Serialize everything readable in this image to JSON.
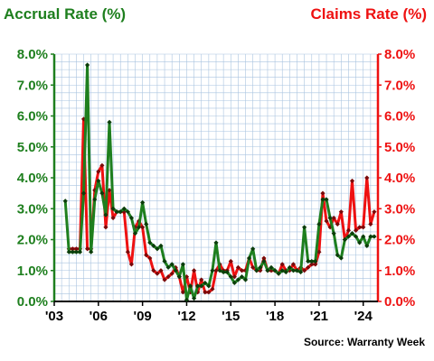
{
  "chart_data": {
    "type": "line",
    "title_left": "Accrual Rate (%)",
    "title_right": "Claims Rate (%)",
    "source": "Source: Warranty Week",
    "colors": {
      "accrual": "#1e7f1e",
      "claims": "#ee1111",
      "grid": "#aac4e0"
    },
    "x_range": [
      2003.0,
      2025.0
    ],
    "y_range": [
      0,
      8
    ],
    "left_ticks": [
      "0.0%",
      "1.0%",
      "2.0%",
      "3.0%",
      "4.0%",
      "5.0%",
      "6.0%",
      "7.0%",
      "8.0%"
    ],
    "right_ticks": [
      "0.0%",
      "1.0%",
      "2.0%",
      "3.0%",
      "4.0%",
      "5.0%",
      "6.0%",
      "7.0%",
      "8.0%"
    ],
    "x_ticks": [
      {
        "label": "'03",
        "x": 2003
      },
      {
        "label": "'06",
        "x": 2006
      },
      {
        "label": "'09",
        "x": 2009
      },
      {
        "label": "'12",
        "x": 2012
      },
      {
        "label": "'15",
        "x": 2015
      },
      {
        "label": "'18",
        "x": 2018
      },
      {
        "label": "'21",
        "x": 2021
      },
      {
        "label": "'24",
        "x": 2024
      }
    ],
    "series": [
      {
        "name": "Accrual Rate (%)",
        "color": "#1e7f1e",
        "x": [
          2003.75,
          2004.0,
          2004.25,
          2004.5,
          2004.75,
          2005.0,
          2005.25,
          2005.5,
          2005.75,
          2006.0,
          2006.25,
          2006.5,
          2006.75,
          2007.0,
          2007.25,
          2007.5,
          2007.75,
          2008.0,
          2008.25,
          2008.5,
          2008.75,
          2009.0,
          2009.25,
          2009.5,
          2009.75,
          2010.0,
          2010.25,
          2010.5,
          2010.75,
          2011.0,
          2011.25,
          2011.5,
          2011.75,
          2012.0,
          2012.25,
          2012.5,
          2012.75,
          2013.0,
          2013.25,
          2013.5,
          2013.75,
          2014.0,
          2014.25,
          2014.5,
          2014.75,
          2015.0,
          2015.25,
          2015.5,
          2015.75,
          2016.0,
          2016.25,
          2016.5,
          2016.75,
          2017.0,
          2017.25,
          2017.5,
          2017.75,
          2018.0,
          2018.25,
          2018.5,
          2018.75,
          2019.0,
          2019.25,
          2019.5,
          2019.75,
          2020.0,
          2020.25,
          2020.5,
          2020.75,
          2021.0,
          2021.25,
          2021.5,
          2021.75,
          2022.0,
          2022.25,
          2022.5,
          2022.75,
          2023.0,
          2023.25,
          2023.5,
          2023.75,
          2024.0,
          2024.25,
          2024.5,
          2024.75
        ],
        "values": [
          3.25,
          1.6,
          1.6,
          1.6,
          1.6,
          3.5,
          7.65,
          1.6,
          3.3,
          3.9,
          3.5,
          2.8,
          5.8,
          3.0,
          2.9,
          2.9,
          3.0,
          2.9,
          2.7,
          2.2,
          2.4,
          3.2,
          2.5,
          1.9,
          1.8,
          1.7,
          1.8,
          1.3,
          1.1,
          1.2,
          1.0,
          0.8,
          1.2,
          0.05,
          0.5,
          0.1,
          0.5,
          0.5,
          0.6,
          0.5,
          1.0,
          1.9,
          1.0,
          0.95,
          0.95,
          0.8,
          0.6,
          0.7,
          0.8,
          0.7,
          1.4,
          1.7,
          1.0,
          1.1,
          1.3,
          1.0,
          1.1,
          1.0,
          0.9,
          1.0,
          0.95,
          1.1,
          1.0,
          1.0,
          0.95,
          2.4,
          1.3,
          1.3,
          1.3,
          2.5,
          3.3,
          3.3,
          2.7,
          2.2,
          1.5,
          1.4,
          2.0,
          2.1,
          2.2,
          2.1,
          1.9,
          2.1,
          1.8,
          2.1,
          2.1
        ]
      },
      {
        "name": "Claims Rate (%)",
        "color": "#ee1111",
        "x": [
          2004.0,
          2004.25,
          2004.5,
          2004.75,
          2005.0,
          2005.25,
          2005.5,
          2005.75,
          2006.0,
          2006.25,
          2006.5,
          2006.75,
          2007.0,
          2007.25,
          2007.5,
          2007.75,
          2008.0,
          2008.25,
          2008.5,
          2008.75,
          2009.0,
          2009.25,
          2009.5,
          2009.75,
          2010.0,
          2010.25,
          2010.5,
          2010.75,
          2011.0,
          2011.25,
          2011.5,
          2011.75,
          2012.0,
          2012.25,
          2012.5,
          2012.75,
          2013.0,
          2013.25,
          2013.5,
          2013.75,
          2014.0,
          2014.25,
          2014.5,
          2014.75,
          2015.0,
          2015.25,
          2015.5,
          2015.75,
          2016.0,
          2016.25,
          2016.5,
          2016.75,
          2017.0,
          2017.25,
          2017.5,
          2017.75,
          2018.0,
          2018.25,
          2018.5,
          2018.75,
          2019.0,
          2019.25,
          2019.5,
          2019.75,
          2020.0,
          2020.25,
          2020.5,
          2020.75,
          2021.0,
          2021.25,
          2021.5,
          2021.75,
          2022.0,
          2022.25,
          2022.5,
          2022.75,
          2023.0,
          2023.25,
          2023.5,
          2023.75,
          2024.0,
          2024.25,
          2024.5,
          2024.75
        ],
        "values": [
          1.7,
          1.7,
          1.7,
          1.7,
          5.9,
          1.7,
          1.7,
          3.6,
          4.2,
          4.4,
          2.4,
          3.6,
          2.7,
          2.9,
          2.9,
          2.9,
          1.6,
          1.2,
          2.4,
          2.6,
          2.4,
          1.5,
          1.4,
          1.0,
          0.9,
          1.0,
          0.7,
          0.8,
          0.9,
          1.1,
          0.8,
          0.3,
          0.8,
          0.3,
          1.0,
          0.3,
          0.7,
          0.3,
          0.3,
          0.4,
          1.0,
          1.2,
          1.0,
          1.0,
          1.3,
          0.8,
          1.1,
          1.0,
          1.0,
          1.4,
          1.1,
          1.0,
          1.0,
          1.4,
          1.0,
          1.0,
          1.0,
          0.9,
          1.2,
          1.0,
          1.0,
          1.2,
          1.0,
          1.1,
          1.0,
          1.1,
          1.2,
          1.2,
          1.6,
          3.5,
          2.6,
          2.4,
          2.7,
          2.5,
          2.9,
          2.0,
          2.3,
          3.9,
          2.3,
          2.4,
          2.4,
          4.0,
          2.5,
          2.9
        ]
      }
    ]
  }
}
